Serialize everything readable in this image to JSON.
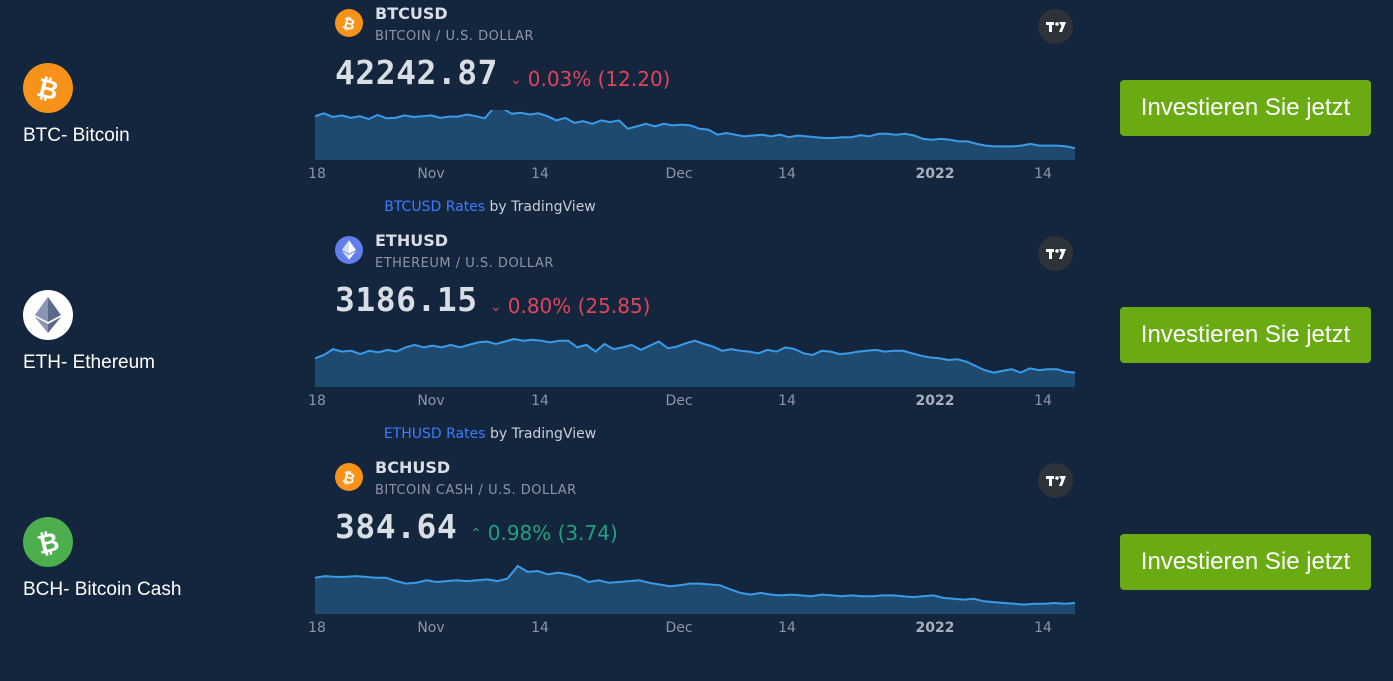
{
  "rows": [
    {
      "coin_name": "BTC- Bitcoin",
      "icon": "bitcoin-icon",
      "icon_color": "#f7931a",
      "symbol": "BTCUSD",
      "description": "BITCOIN / U.S. DOLLAR",
      "price": "42242.87",
      "change": "0.03% (12.20)",
      "direction": "down",
      "series": [
        0.9,
        0.97,
        0.88,
        0.92,
        0.86,
        0.9,
        0.83,
        0.93,
        0.85,
        0.86,
        0.92,
        0.88,
        0.9,
        0.92,
        0.86,
        0.89,
        0.89,
        0.94,
        0.9,
        0.85,
        1.1,
        1.08,
        0.96,
        0.98,
        0.94,
        0.97,
        0.9,
        0.8,
        0.86,
        0.74,
        0.78,
        0.72,
        0.8,
        0.76,
        0.8,
        0.6,
        0.66,
        0.72,
        0.66,
        0.72,
        0.68,
        0.7,
        0.68,
        0.6,
        0.58,
        0.46,
        0.5,
        0.46,
        0.42,
        0.44,
        0.46,
        0.42,
        0.46,
        0.4,
        0.44,
        0.42,
        0.4,
        0.38,
        0.38,
        0.4,
        0.4,
        0.45,
        0.42,
        0.48,
        0.48,
        0.46,
        0.48,
        0.44,
        0.36,
        0.34,
        0.36,
        0.34,
        0.3,
        0.3,
        0.24,
        0.2,
        0.18,
        0.18,
        0.18,
        0.2,
        0.24,
        0.2,
        0.2,
        0.2,
        0.18,
        0.14
      ],
      "attribution_link": "BTCUSD Rates",
      "attribution_suffix": " by TradingView",
      "button": "Investieren Sie jetzt"
    },
    {
      "coin_name": "ETH- Ethereum",
      "icon": "ethereum-icon",
      "icon_color": "#627eea",
      "symbol": "ETHUSD",
      "description": "ETHEREUM / U.S. DOLLAR",
      "price": "3186.15",
      "change": "0.80% (25.85)",
      "direction": "down",
      "series": [
        0.54,
        0.62,
        0.76,
        0.7,
        0.72,
        0.64,
        0.72,
        0.68,
        0.74,
        0.7,
        0.8,
        0.86,
        0.8,
        0.84,
        0.8,
        0.86,
        0.8,
        0.86,
        0.92,
        0.94,
        0.88,
        0.94,
        1.0,
        0.96,
        0.98,
        0.96,
        0.92,
        0.96,
        0.96,
        0.8,
        0.86,
        0.7,
        0.88,
        0.76,
        0.8,
        0.86,
        0.74,
        0.84,
        0.94,
        0.78,
        0.82,
        0.9,
        0.96,
        0.88,
        0.82,
        0.72,
        0.76,
        0.72,
        0.7,
        0.66,
        0.74,
        0.7,
        0.8,
        0.76,
        0.66,
        0.62,
        0.72,
        0.7,
        0.64,
        0.66,
        0.7,
        0.72,
        0.74,
        0.7,
        0.72,
        0.72,
        0.66,
        0.6,
        0.56,
        0.54,
        0.5,
        0.52,
        0.46,
        0.36,
        0.26,
        0.2,
        0.24,
        0.28,
        0.2,
        0.3,
        0.26,
        0.28,
        0.28,
        0.22,
        0.2
      ],
      "attribution_link": "ETHUSD Rates",
      "attribution_suffix": " by TradingView",
      "button": "Investieren Sie jetzt"
    },
    {
      "coin_name": "BCH- Bitcoin Cash",
      "icon": "bitcoin-cash-icon",
      "icon_color": "#4cae4c",
      "symbol": "BCHUSD",
      "description": "BITCOIN CASH / U.S. DOLLAR",
      "price": "384.64",
      "change": "0.98% (3.74)",
      "direction": "up",
      "series": [
        0.72,
        0.76,
        0.74,
        0.74,
        0.76,
        0.74,
        0.72,
        0.72,
        0.64,
        0.58,
        0.6,
        0.66,
        0.62,
        0.64,
        0.66,
        0.64,
        0.66,
        0.68,
        0.64,
        0.7,
        1.0,
        0.86,
        0.88,
        0.8,
        0.84,
        0.8,
        0.74,
        0.62,
        0.66,
        0.6,
        0.62,
        0.64,
        0.66,
        0.6,
        0.56,
        0.52,
        0.54,
        0.58,
        0.58,
        0.56,
        0.54,
        0.44,
        0.36,
        0.32,
        0.36,
        0.32,
        0.3,
        0.32,
        0.3,
        0.28,
        0.32,
        0.3,
        0.28,
        0.3,
        0.28,
        0.28,
        0.3,
        0.3,
        0.28,
        0.26,
        0.28,
        0.3,
        0.24,
        0.22,
        0.2,
        0.22,
        0.16,
        0.14,
        0.12,
        0.1,
        0.08,
        0.1,
        0.1,
        0.12,
        0.1,
        0.12
      ],
      "attribution_link": "",
      "attribution_suffix": "",
      "button": "Investieren Sie jetzt"
    }
  ],
  "x_ticks": [
    "18",
    "Nov",
    "14",
    "Dec",
    "14",
    "2022",
    "14"
  ],
  "x_tick_bold": "2022",
  "colors": {
    "background": "#14263d",
    "line": "#3a9be8",
    "area": "#1e4a70",
    "button": "#6aab14",
    "down": "#e0445b",
    "up": "#24a17a"
  }
}
